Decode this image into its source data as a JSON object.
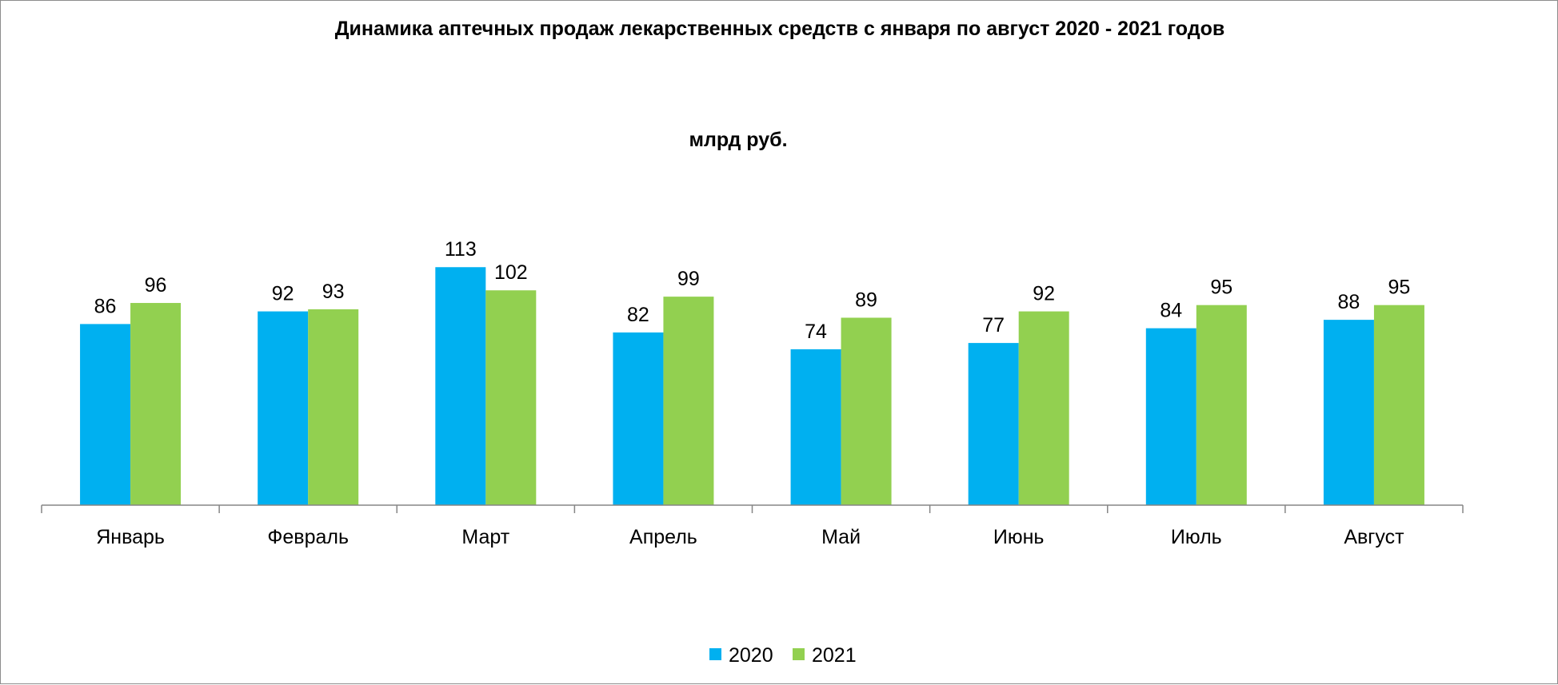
{
  "chart_data": {
    "type": "bar",
    "title": "Динамика аптечных продаж лекарственных средств с января по август 2020 - 2021 годов",
    "subtitle": "млрд руб.",
    "categories": [
      "Январь",
      "Февраль",
      "Март",
      "Апрель",
      "Май",
      "Июнь",
      "Июль",
      "Август"
    ],
    "series": [
      {
        "name": "2020",
        "color": "#00B0F0",
        "values": [
          86,
          92,
          113,
          82,
          74,
          77,
          84,
          88
        ]
      },
      {
        "name": "2021",
        "color": "#92D050",
        "values": [
          96,
          93,
          102,
          99,
          89,
          92,
          95,
          95
        ]
      }
    ],
    "ylim": [
      0,
      113
    ],
    "grid": false,
    "legend": "bottom",
    "data_labels": true
  }
}
